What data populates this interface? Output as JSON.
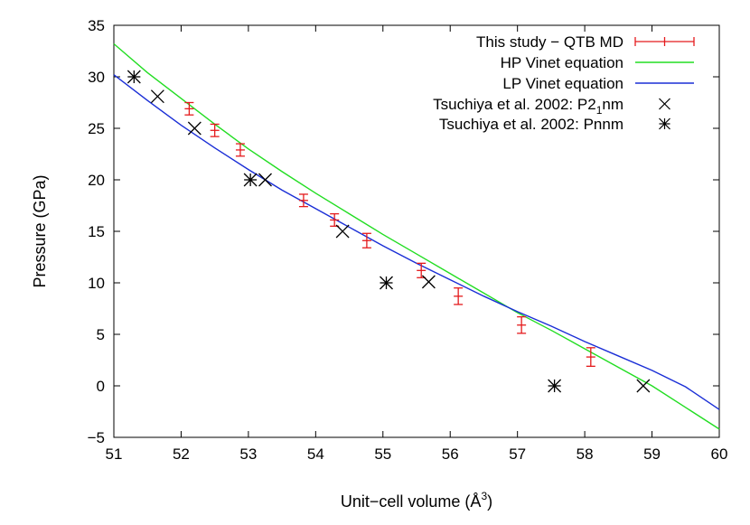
{
  "chart_data": {
    "type": "scatter",
    "title": "",
    "xlabel": "Unit-cell volume (Å³)",
    "xlabel_main": "Unit−cell volume (Å",
    "xlabel_sup": "3",
    "xlabel_end": ")",
    "ylabel": "Pressure (GPa)",
    "xlim": [
      51,
      60
    ],
    "ylim": [
      -5,
      35
    ],
    "xticks": [
      51,
      52,
      53,
      54,
      55,
      56,
      57,
      58,
      59,
      60
    ],
    "yticks": [
      -5,
      0,
      5,
      10,
      15,
      20,
      25,
      30,
      35
    ],
    "grid": false,
    "legend_position": "top-right",
    "colors": {
      "qtb": "#e41a1c",
      "hp": "#22dd22",
      "lp": "#1a2ed6",
      "tsuchiya": "#000000"
    },
    "series": [
      {
        "name": "This study − QTB MD",
        "kind": "errorbar",
        "color": "#e41a1c",
        "points": [
          {
            "x": 52.12,
            "y": 26.9,
            "err": 0.6
          },
          {
            "x": 52.5,
            "y": 24.8,
            "err": 0.6
          },
          {
            "x": 52.88,
            "y": 22.9,
            "err": 0.6
          },
          {
            "x": 53.82,
            "y": 18.0,
            "err": 0.6
          },
          {
            "x": 54.28,
            "y": 16.1,
            "err": 0.6
          },
          {
            "x": 54.76,
            "y": 14.1,
            "err": 0.7
          },
          {
            "x": 55.57,
            "y": 11.2,
            "err": 0.7
          },
          {
            "x": 56.12,
            "y": 8.7,
            "err": 0.8
          },
          {
            "x": 57.06,
            "y": 5.9,
            "err": 0.8
          },
          {
            "x": 58.09,
            "y": 2.8,
            "err": 0.9
          }
        ]
      },
      {
        "name": "HP Vinet equation",
        "kind": "line",
        "color": "#22dd22",
        "x": [
          51.0,
          51.5,
          52.0,
          52.5,
          53.0,
          53.5,
          54.0,
          54.5,
          55.0,
          55.5,
          56.0,
          56.5,
          57.0,
          57.5,
          58.0,
          58.5,
          59.0,
          59.5,
          60.0
        ],
        "y": [
          33.2,
          30.4,
          27.9,
          25.4,
          23.0,
          20.8,
          18.7,
          16.7,
          14.7,
          12.8,
          10.9,
          9.0,
          7.1,
          5.4,
          3.6,
          1.8,
          0.0,
          -2.1,
          -4.2
        ]
      },
      {
        "name": "LP Vinet equation",
        "kind": "line",
        "color": "#1a2ed6",
        "x": [
          51.0,
          51.5,
          52.0,
          52.5,
          53.0,
          53.5,
          54.0,
          54.5,
          55.0,
          55.5,
          56.0,
          56.5,
          57.0,
          57.5,
          58.0,
          58.5,
          59.0,
          59.5,
          60.0
        ],
        "y": [
          30.2,
          27.7,
          25.3,
          23.1,
          21.0,
          19.0,
          17.2,
          15.4,
          13.6,
          11.9,
          10.3,
          8.7,
          7.2,
          5.8,
          4.3,
          2.9,
          1.5,
          -0.1,
          -2.3
        ]
      },
      {
        "name_prefix": "Tsuchiya et al. 2002: P2",
        "name_sub": "1",
        "name_suffix": "nm",
        "kind": "marker-x",
        "color": "#000000",
        "points": [
          {
            "x": 51.65,
            "y": 28.1
          },
          {
            "x": 52.2,
            "y": 25.0
          },
          {
            "x": 53.25,
            "y": 20.0
          },
          {
            "x": 54.4,
            "y": 15.0
          },
          {
            "x": 55.68,
            "y": 10.1
          },
          {
            "x": 58.87,
            "y": 0.0
          }
        ]
      },
      {
        "name": "Tsuchiya et al. 2002: Pnnm",
        "kind": "marker-star",
        "color": "#000000",
        "points": [
          {
            "x": 51.3,
            "y": 30.0
          },
          {
            "x": 53.03,
            "y": 20.0
          },
          {
            "x": 55.05,
            "y": 10.0
          },
          {
            "x": 57.55,
            "y": 0.0
          }
        ]
      }
    ]
  }
}
